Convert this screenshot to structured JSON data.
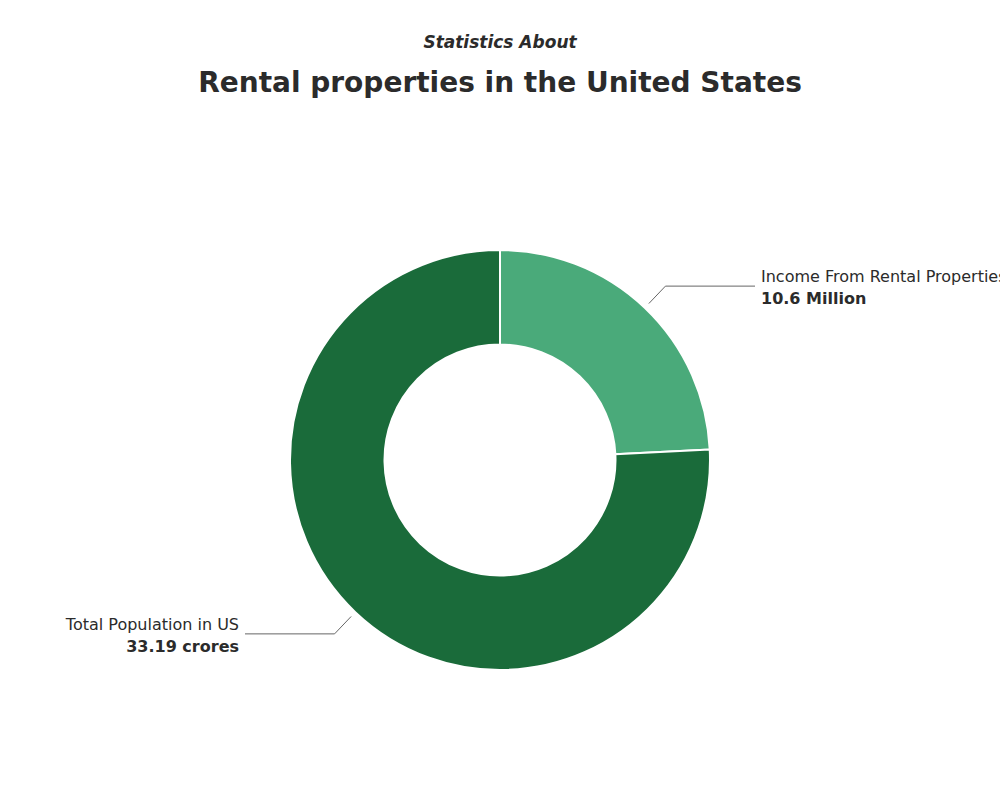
{
  "chart_data": {
    "type": "donut",
    "subtitle": "Statistics About",
    "title": "Rental properties in the United States",
    "categories": [
      "Income From Rental Properties",
      "Total Population in US"
    ],
    "values": [
      10.6,
      33.19
    ],
    "value_labels": [
      "10.6 Million",
      "33.19 crores"
    ],
    "colors": [
      "#4aaa7a",
      "#1a6b3a"
    ],
    "data_labels": true
  }
}
